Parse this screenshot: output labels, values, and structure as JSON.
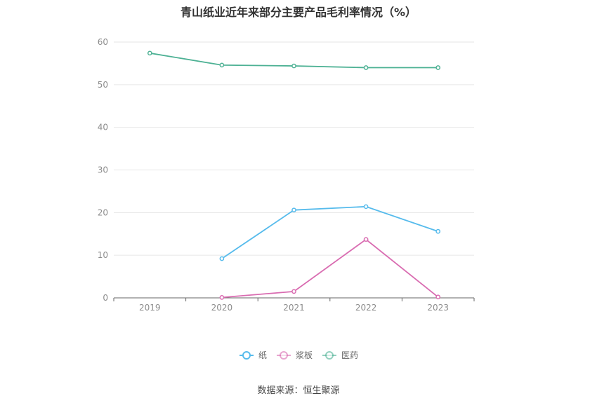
{
  "chart_data": {
    "type": "line",
    "title": "青山纸业近年来部分主要产品毛利率情况（%）",
    "categories": [
      "2019",
      "2020",
      "2021",
      "2022",
      "2023"
    ],
    "ylim": [
      0,
      60
    ],
    "yticks": [
      0,
      10,
      20,
      30,
      40,
      50,
      60
    ],
    "grid": true,
    "legend_position": "bottom",
    "series": [
      {
        "name": "纸",
        "color": "#56bbec",
        "values": [
          null,
          9.2,
          20.6,
          21.4,
          15.6
        ]
      },
      {
        "name": "浆板",
        "color": "#d96cb1",
        "values": [
          null,
          0.1,
          1.5,
          13.7,
          0.2
        ]
      },
      {
        "name": "医药",
        "color": "#4db194",
        "values": [
          57.4,
          54.6,
          54.4,
          54.0,
          54.0
        ]
      }
    ]
  },
  "source": "数据来源：恒生聚源"
}
